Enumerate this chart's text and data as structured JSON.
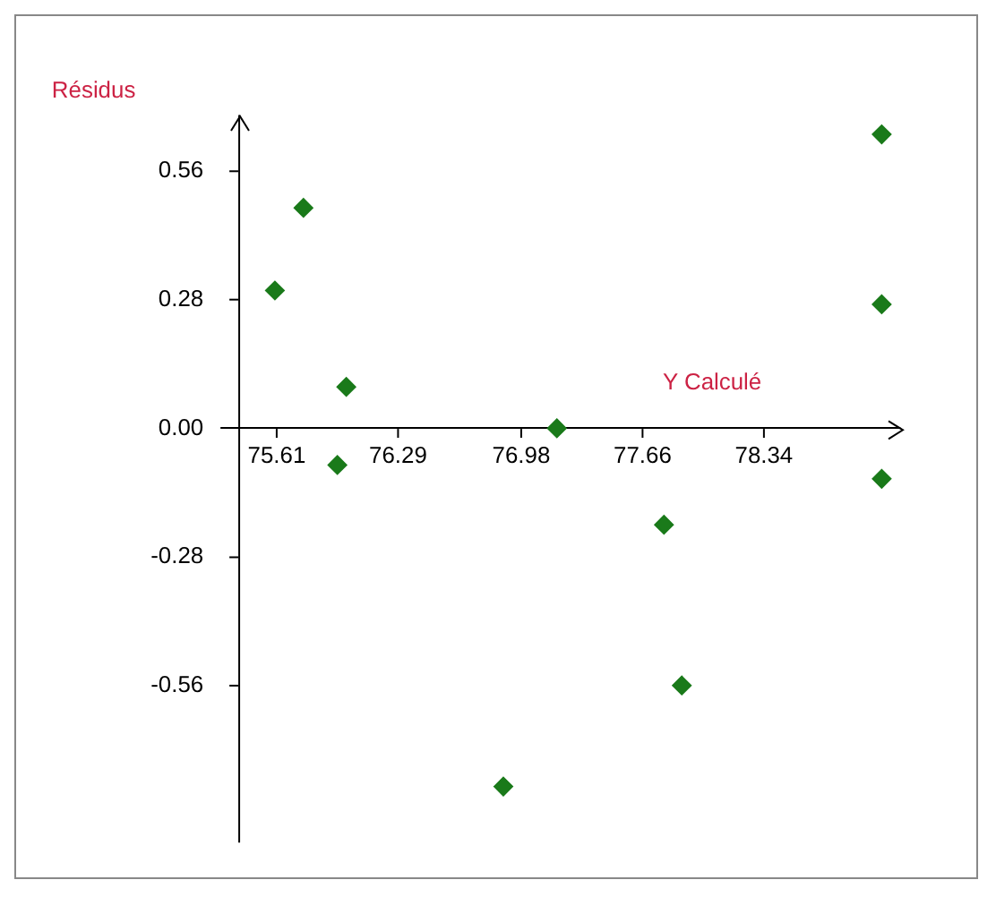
{
  "chart_data": {
    "type": "scatter",
    "xlabel": "Y Calculé",
    "ylabel": "Résidus",
    "x": [
      75.6,
      75.76,
      76.0,
      75.95,
      77.18,
      77.78,
      77.88,
      76.88,
      79.0,
      79.0,
      79.0
    ],
    "values": [
      0.3,
      0.48,
      0.09,
      -0.08,
      0.0,
      -0.21,
      -0.56,
      -0.78,
      0.64,
      0.27,
      -0.11
    ],
    "color": "#1a7a1a",
    "marker": "diamond",
    "grid": false,
    "legend": false,
    "xlim": [
      75.3,
      79.1
    ],
    "ylim": [
      -0.9,
      0.68
    ],
    "xticks": [
      75.61,
      76.29,
      76.98,
      77.66,
      78.34
    ],
    "yticks": [
      {
        "value": 0.56,
        "label": "0.56"
      },
      {
        "value": 0.28,
        "label": "0.28"
      },
      {
        "value": 0,
        "label": "0.00"
      },
      {
        "value": -0.28,
        "label": "-0.28"
      },
      {
        "value": -0.56,
        "label": "-0.56"
      }
    ]
  }
}
